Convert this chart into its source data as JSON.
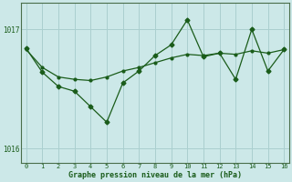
{
  "xlabel": "Graphe pression niveau de la mer (hPa)",
  "bg_color": "#cce8e8",
  "grid_color": "#aacfcf",
  "line_color": "#1a5c1a",
  "marker_color": "#1a5c1a",
  "x": [
    0,
    1,
    2,
    3,
    4,
    5,
    6,
    7,
    8,
    9,
    10,
    11,
    12,
    13,
    14,
    15,
    16
  ],
  "y_smooth": [
    1016.83,
    1016.68,
    1016.6,
    1016.58,
    1016.57,
    1016.6,
    1016.65,
    1016.68,
    1016.72,
    1016.76,
    1016.79,
    1016.78,
    1016.8,
    1016.79,
    1016.82,
    1016.8,
    1016.83
  ],
  "y_jagged": [
    1016.84,
    1016.64,
    1016.52,
    1016.48,
    1016.35,
    1016.22,
    1016.55,
    1016.65,
    1016.78,
    1016.87,
    1017.08,
    1016.77,
    1016.8,
    1016.58,
    1017.0,
    1016.65,
    1016.83
  ],
  "yticks": [
    1016,
    1017
  ],
  "ylim": [
    1015.88,
    1017.22
  ],
  "xlim": [
    -0.3,
    16.3
  ]
}
